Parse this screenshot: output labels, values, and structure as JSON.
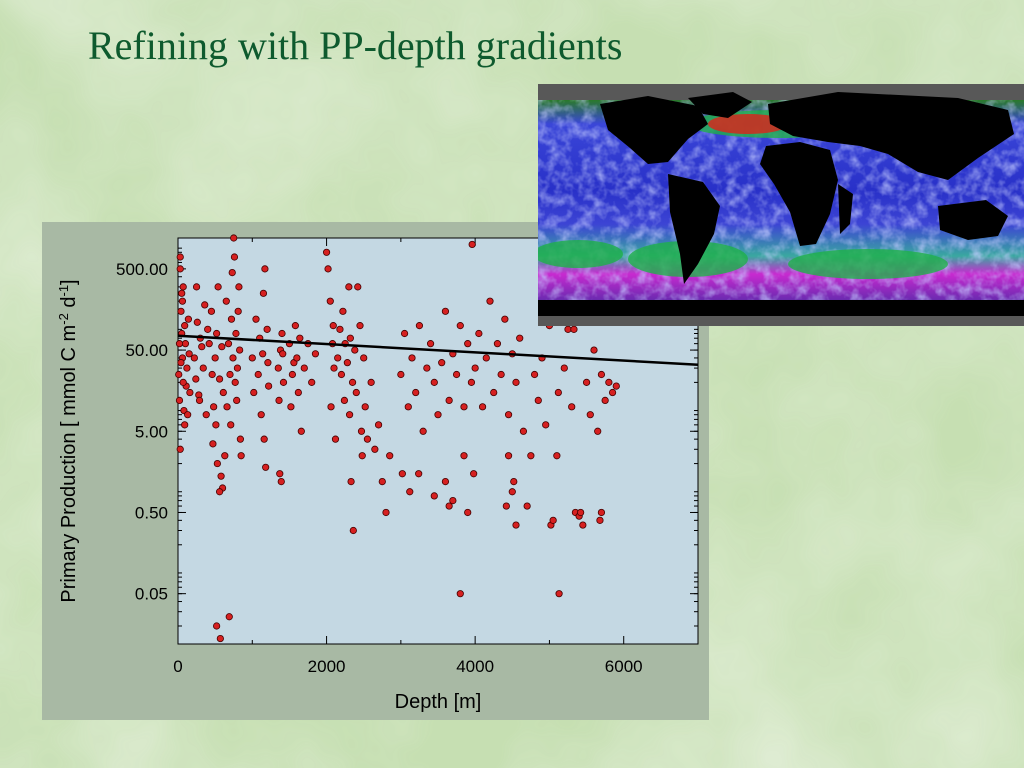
{
  "slide": {
    "title": "Refining with PP-depth gradients"
  },
  "map": {
    "icon": "global-ocean-chlorophyll-map"
  },
  "colors": {
    "background": "#c9e0b4",
    "title": "#0e5a2e",
    "panel": "#a8b9a4",
    "plot_area": "#c4d8e3",
    "points": "#d62020",
    "fit_line": "#000000"
  },
  "chart_data": {
    "type": "scatter",
    "xlabel": "Depth [m]",
    "ylabel_parts": [
      "Primary Production [ mmol C m",
      "-2",
      " d",
      "-1",
      "]"
    ],
    "x_scale": "linear",
    "y_scale": "log",
    "xlim": [
      0,
      7000
    ],
    "ylim": [
      0.012,
      1200
    ],
    "x_ticks": [
      0,
      2000,
      4000,
      6000
    ],
    "x_tick_labels": [
      "0",
      "2000",
      "4000",
      "6000"
    ],
    "y_ticks": [
      0.05,
      0.5,
      5,
      50,
      500
    ],
    "y_tick_labels": [
      "0.05",
      "0.50",
      "5.00",
      "50.00",
      "500.00"
    ],
    "grid": false,
    "legend": "none",
    "fit_line": {
      "x": [
        0,
        7000
      ],
      "y": [
        75,
        33
      ]
    },
    "series": [
      {
        "points": [
          [
            40,
            150
          ],
          [
            60,
            40
          ],
          [
            20,
            12
          ],
          [
            90,
            6
          ],
          [
            30,
            500
          ],
          [
            70,
            300
          ],
          [
            10,
            25
          ],
          [
            50,
            80
          ],
          [
            110,
            18
          ],
          [
            80,
            9
          ],
          [
            30,
            3
          ],
          [
            60,
            200
          ],
          [
            100,
            60
          ],
          [
            140,
            120
          ],
          [
            120,
            30
          ],
          [
            160,
            15
          ],
          [
            150,
            45
          ],
          [
            30,
            700
          ],
          [
            20,
            60
          ],
          [
            70,
            20
          ],
          [
            90,
            100
          ],
          [
            130,
            8
          ],
          [
            50,
            250
          ],
          [
            40,
            35
          ],
          [
            220,
            40
          ],
          [
            260,
            110
          ],
          [
            240,
            22
          ],
          [
            300,
            70
          ],
          [
            280,
            14
          ],
          [
            320,
            55
          ],
          [
            360,
            180
          ],
          [
            380,
            8
          ],
          [
            340,
            30
          ],
          [
            400,
            90
          ],
          [
            250,
            300
          ],
          [
            290,
            12
          ],
          [
            420,
            60
          ],
          [
            460,
            25
          ],
          [
            450,
            150
          ],
          [
            500,
            40
          ],
          [
            480,
            10
          ],
          [
            520,
            80
          ],
          [
            540,
            300
          ],
          [
            560,
            22
          ],
          [
            510,
            6
          ],
          [
            470,
            3.5
          ],
          [
            530,
            2
          ],
          [
            520,
            0.02
          ],
          [
            570,
            0.014
          ],
          [
            580,
            1.4
          ],
          [
            600,
            1.0
          ],
          [
            560,
            0.9
          ],
          [
            630,
            2.5
          ],
          [
            610,
            15
          ],
          [
            590,
            55
          ],
          [
            650,
            200
          ],
          [
            680,
            60
          ],
          [
            700,
            25
          ],
          [
            660,
            10
          ],
          [
            720,
            120
          ],
          [
            740,
            40
          ],
          [
            690,
            0.026
          ],
          [
            760,
            700
          ],
          [
            710,
            6
          ],
          [
            730,
            450
          ],
          [
            750,
            1200
          ],
          [
            780,
            80
          ],
          [
            800,
            30
          ],
          [
            820,
            300
          ],
          [
            790,
            12
          ],
          [
            840,
            4
          ],
          [
            810,
            150
          ],
          [
            830,
            50
          ],
          [
            850,
            2.5
          ],
          [
            770,
            20
          ],
          [
            1000,
            40
          ],
          [
            1050,
            120
          ],
          [
            1020,
            15
          ],
          [
            1100,
            70
          ],
          [
            1080,
            25
          ],
          [
            1150,
            250
          ],
          [
            1120,
            8
          ],
          [
            1170,
            500
          ],
          [
            1140,
            45
          ],
          [
            1190,
            1400
          ],
          [
            1200,
            90
          ],
          [
            1220,
            18
          ],
          [
            1180,
            1.8
          ],
          [
            1160,
            4
          ],
          [
            1210,
            35
          ],
          [
            1350,
            30
          ],
          [
            1380,
            50
          ],
          [
            1360,
            12
          ],
          [
            1400,
            80
          ],
          [
            1420,
            20
          ],
          [
            1370,
            1.5
          ],
          [
            1390,
            1.2
          ],
          [
            1410,
            45
          ],
          [
            1500,
            60
          ],
          [
            1540,
            25
          ],
          [
            1520,
            10
          ],
          [
            1560,
            35
          ],
          [
            1580,
            100
          ],
          [
            1600,
            40
          ],
          [
            1620,
            15
          ],
          [
            1640,
            70
          ],
          [
            1660,
            5
          ],
          [
            1700,
            30
          ],
          [
            1750,
            60
          ],
          [
            1800,
            20
          ],
          [
            1850,
            45
          ],
          [
            2000,
            800
          ],
          [
            2020,
            500
          ],
          [
            2050,
            200
          ],
          [
            2080,
            60
          ],
          [
            2100,
            30
          ],
          [
            2060,
            10
          ],
          [
            2120,
            4
          ],
          [
            2090,
            100
          ],
          [
            2150,
            40
          ],
          [
            2180,
            90
          ],
          [
            2200,
            25
          ],
          [
            2220,
            150
          ],
          [
            2250,
            60
          ],
          [
            2240,
            12
          ],
          [
            2280,
            35
          ],
          [
            2300,
            300
          ],
          [
            2320,
            70
          ],
          [
            2310,
            8
          ],
          [
            2350,
            20
          ],
          [
            2330,
            1.2
          ],
          [
            2360,
            0.3
          ],
          [
            2380,
            50
          ],
          [
            2400,
            15
          ],
          [
            2420,
            300
          ],
          [
            2440,
            1600
          ],
          [
            2460,
            1300
          ],
          [
            2450,
            100
          ],
          [
            2470,
            5
          ],
          [
            2480,
            2.5
          ],
          [
            2500,
            40
          ],
          [
            2520,
            10
          ],
          [
            2550,
            4
          ],
          [
            2600,
            20
          ],
          [
            2650,
            3
          ],
          [
            2700,
            6
          ],
          [
            2750,
            1.2
          ],
          [
            2800,
            0.5
          ],
          [
            2850,
            2.5
          ],
          [
            3000,
            25
          ],
          [
            3050,
            80
          ],
          [
            3100,
            10
          ],
          [
            3150,
            40
          ],
          [
            3200,
            15
          ],
          [
            3250,
            100
          ],
          [
            3300,
            5
          ],
          [
            3350,
            30
          ],
          [
            3400,
            60
          ],
          [
            3450,
            20
          ],
          [
            3500,
            8
          ],
          [
            3550,
            35
          ],
          [
            3600,
            150
          ],
          [
            3650,
            12
          ],
          [
            3700,
            45
          ],
          [
            3750,
            25
          ],
          [
            3800,
            100
          ],
          [
            3850,
            10
          ],
          [
            3900,
            60
          ],
          [
            3950,
            20
          ],
          [
            3020,
            1.5
          ],
          [
            3120,
            0.9
          ],
          [
            3240,
            1.5
          ],
          [
            3450,
            0.8
          ],
          [
            3600,
            1.2
          ],
          [
            3650,
            0.6
          ],
          [
            3700,
            0.7
          ],
          [
            3800,
            0.05
          ],
          [
            3850,
            2.5
          ],
          [
            3900,
            0.5
          ],
          [
            3960,
            1000
          ],
          [
            3980,
            1.5
          ],
          [
            4000,
            30
          ],
          [
            4050,
            80
          ],
          [
            4100,
            10
          ],
          [
            4150,
            40
          ],
          [
            4200,
            200
          ],
          [
            4250,
            15
          ],
          [
            4300,
            60
          ],
          [
            4350,
            25
          ],
          [
            4400,
            120
          ],
          [
            4450,
            8
          ],
          [
            4500,
            45
          ],
          [
            4550,
            20
          ],
          [
            4520,
            1.2
          ],
          [
            4600,
            70
          ],
          [
            4420,
            0.6
          ],
          [
            4450,
            2.5
          ],
          [
            4500,
            0.9
          ],
          [
            4550,
            0.35
          ],
          [
            4650,
            5
          ],
          [
            4700,
            0.6
          ],
          [
            4750,
            2.5
          ],
          [
            4800,
            25
          ],
          [
            4850,
            12
          ],
          [
            4900,
            40
          ],
          [
            4950,
            6
          ],
          [
            4980,
            200
          ],
          [
            5000,
            100
          ],
          [
            5020,
            0.35
          ],
          [
            5050,
            0.4
          ],
          [
            5100,
            2.5
          ],
          [
            5120,
            15
          ],
          [
            5130,
            0.05
          ],
          [
            5200,
            30
          ],
          [
            5250,
            90
          ],
          [
            5300,
            10
          ],
          [
            5330,
            90
          ],
          [
            5350,
            0.5
          ],
          [
            5400,
            0.45
          ],
          [
            5420,
            0.5
          ],
          [
            5450,
            0.35
          ],
          [
            5500,
            20
          ],
          [
            5550,
            8
          ],
          [
            5600,
            50
          ],
          [
            5650,
            5
          ],
          [
            5700,
            25
          ],
          [
            5750,
            12
          ],
          [
            5800,
            20
          ],
          [
            5850,
            15
          ],
          [
            5700,
            0.5
          ],
          [
            5680,
            0.4
          ],
          [
            5900,
            18
          ]
        ]
      }
    ]
  }
}
